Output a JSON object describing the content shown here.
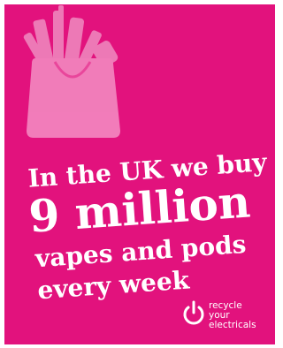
{
  "headline": {
    "lines": [
      "In the UK we buy",
      "9 million",
      "vapes and pods",
      "every week"
    ]
  },
  "logo": {
    "lines": [
      "recycle",
      "your",
      "electricals"
    ]
  }
}
